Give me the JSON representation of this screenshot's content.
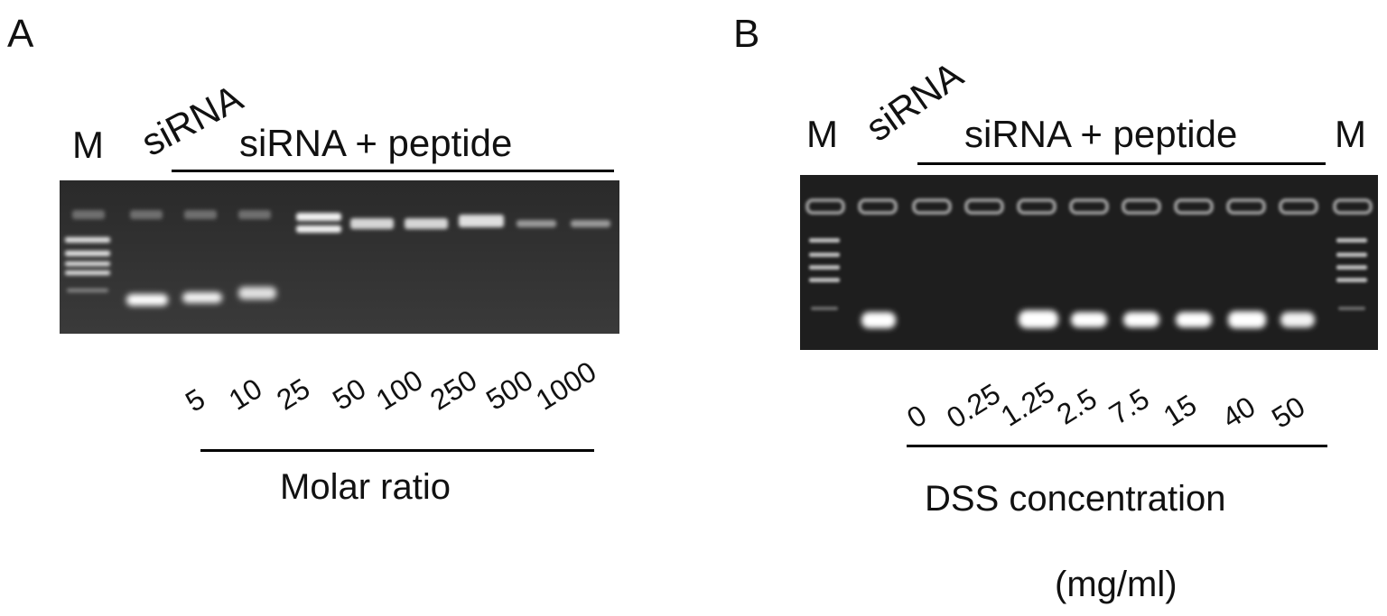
{
  "panel_a": {
    "letter": "A",
    "marker_label": "M",
    "sirna_label": "siRNA",
    "complex_label": "siRNA + peptide",
    "lane_values": [
      "5",
      "10",
      "25",
      "50",
      "100",
      "250",
      "500",
      "1000"
    ],
    "axis_title": "Molar ratio"
  },
  "panel_b": {
    "letter": "B",
    "marker_left_label": "M",
    "sirna_label": "siRNA",
    "complex_label": "siRNA + peptide",
    "marker_right_label": "M",
    "lane_values": [
      "0",
      "0.25",
      "1.25",
      "2.5",
      "7.5",
      "15",
      "40",
      "50"
    ],
    "axis_title": "DSS concentration",
    "axis_unit": "(mg/ml)"
  }
}
